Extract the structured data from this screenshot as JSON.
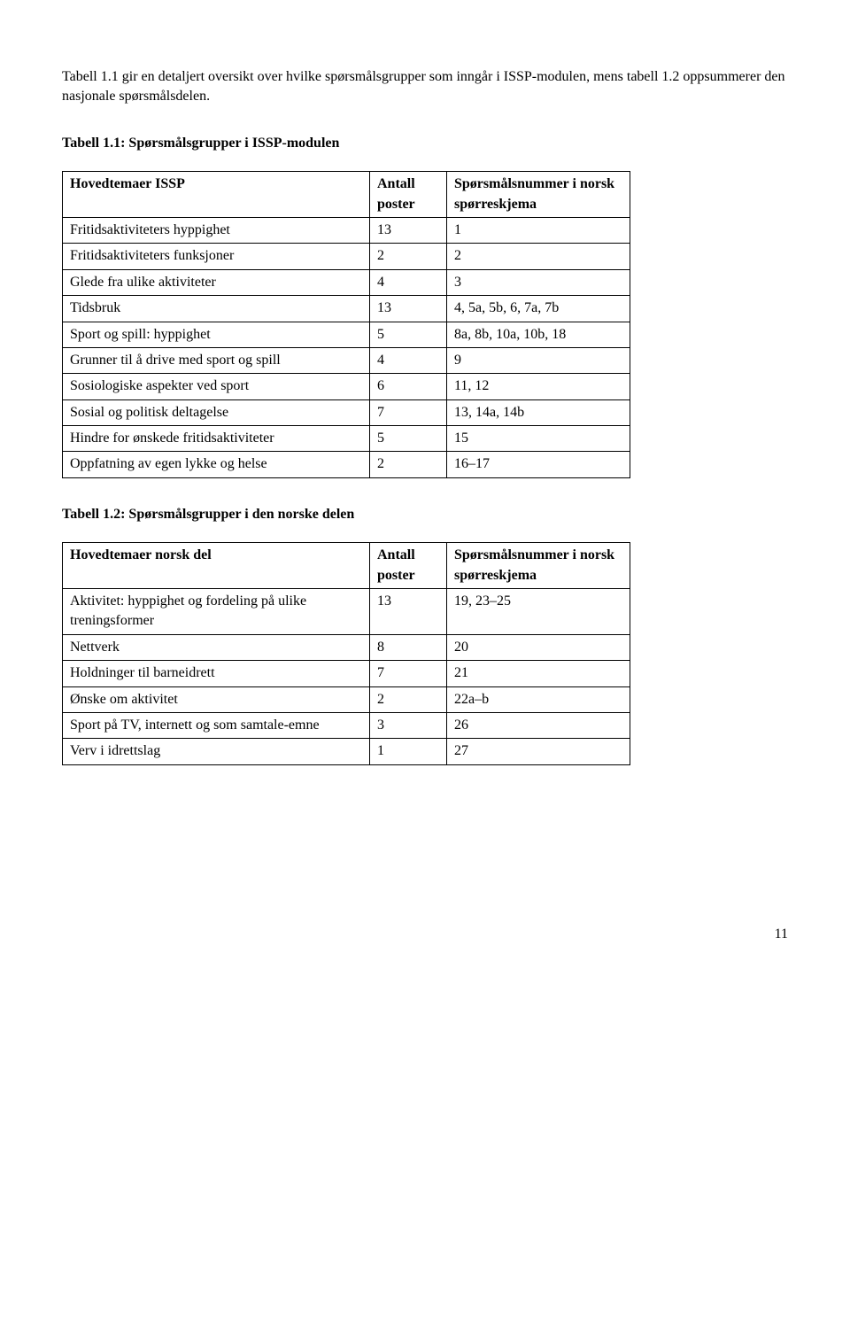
{
  "intro": "Tabell 1.1 gir en detaljert oversikt over hvilke spørsmålsgrupper som inngår i ISSP-modulen, mens tabell 1.2 oppsummerer den nasjonale spørsmålsdelen.",
  "table1": {
    "title": "Tabell 1.1: Spørsmålsgrupper i ISSP-modulen",
    "header_col1": "Hovedtemaer ISSP",
    "header_col2": "Antall poster",
    "header_col3": "Spørsmålsnummer i norsk spørreskjema",
    "rows": [
      {
        "c1": "Fritidsaktiviteters hyppighet",
        "c2": "13",
        "c3": "1"
      },
      {
        "c1": "Fritidsaktiviteters funksjoner",
        "c2": "2",
        "c3": "2"
      },
      {
        "c1": "Glede fra ulike aktiviteter",
        "c2": "4",
        "c3": "3"
      },
      {
        "c1": "Tidsbruk",
        "c2": "13",
        "c3": "4, 5a, 5b, 6, 7a, 7b"
      },
      {
        "c1": "Sport og spill: hyppighet",
        "c2": "5",
        "c3": "8a, 8b, 10a, 10b, 18"
      },
      {
        "c1": "Grunner til å drive med sport og spill",
        "c2": "4",
        "c3": "9"
      },
      {
        "c1": "Sosiologiske aspekter ved sport",
        "c2": "6",
        "c3": "11, 12"
      },
      {
        "c1": "Sosial og politisk deltagelse",
        "c2": "7",
        "c3": "13, 14a, 14b"
      },
      {
        "c1": "Hindre for ønskede fritidsaktiviteter",
        "c2": "5",
        "c3": "15"
      },
      {
        "c1": "Oppfatning av egen lykke og helse",
        "c2": "2",
        "c3": "16–17"
      }
    ]
  },
  "table2": {
    "title": "Tabell 1.2: Spørsmålsgrupper i den norske delen",
    "header_col1": "Hovedtemaer norsk del",
    "header_col2": "Antall poster",
    "header_col3": "Spørsmålsnummer i norsk spørreskjema",
    "rows": [
      {
        "c1": "Aktivitet: hyppighet og fordeling på ulike treningsformer",
        "c2": "13",
        "c3": "19, 23–25"
      },
      {
        "c1": "Nettverk",
        "c2": "8",
        "c3": "20"
      },
      {
        "c1": "Holdninger til barneidrett",
        "c2": "7",
        "c3": "21"
      },
      {
        "c1": "Ønske om aktivitet",
        "c2": "2",
        "c3": "22a–b"
      },
      {
        "c1": "Sport på TV, internett og som samtale-emne",
        "c2": "3",
        "c3": "26"
      },
      {
        "c1": "Verv i idrettslag",
        "c2": "1",
        "c3": "27"
      }
    ]
  },
  "page_number": "11"
}
